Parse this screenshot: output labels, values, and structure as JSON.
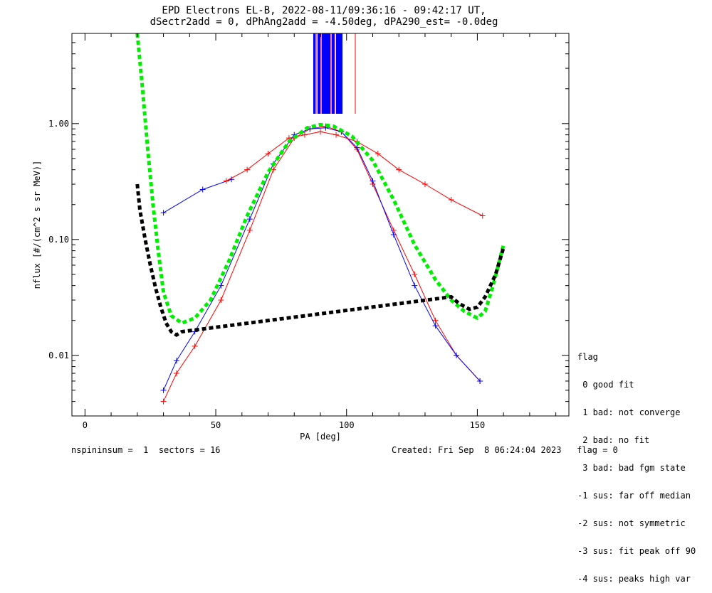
{
  "chart_data": {
    "type": "line",
    "title": "EPD Electrons EL-B, 2022-08-11/09:36:16 - 09:42:17 UT,",
    "subtitle": "dSectr2add = 0, dPhAng2add = -4.50deg, dPA290_est=  -0.0deg",
    "xlabel": "PA [deg]",
    "ylabel": "nflux [#/(cm^2 s sr MeV)]",
    "xlim": [
      -5,
      185
    ],
    "ylim": [
      0.003,
      6.0
    ],
    "yscale": "log",
    "xticks": [
      "0",
      "50",
      "100",
      "150"
    ],
    "xtick_values": [
      0,
      50,
      100,
      150
    ],
    "yticks": [
      "0.01",
      "0.10",
      "1.00"
    ],
    "ytick_values": [
      0.01,
      0.1,
      1.0
    ],
    "series": [
      {
        "color": "#ff0000",
        "x": [
          30,
          35,
          42,
          52,
          63,
          72,
          80,
          86,
          92,
          98,
          104,
          110,
          118,
          126,
          134,
          142,
          151
        ],
        "y": [
          0.004,
          0.007,
          0.012,
          0.03,
          0.12,
          0.4,
          0.75,
          0.9,
          0.95,
          0.85,
          0.6,
          0.3,
          0.12,
          0.05,
          0.02,
          0.01,
          0.006
        ]
      },
      {
        "color": "#0000ff",
        "x": [
          30,
          35,
          42,
          52,
          63,
          72,
          80,
          86,
          92,
          98,
          104,
          110,
          118,
          126,
          134,
          142,
          151
        ],
        "y": [
          0.005,
          0.009,
          0.016,
          0.04,
          0.15,
          0.45,
          0.8,
          0.9,
          0.92,
          0.85,
          0.62,
          0.32,
          0.11,
          0.04,
          0.018,
          0.01,
          0.006
        ]
      },
      {
        "color": "#0000ff",
        "x": [
          30,
          45,
          56
        ],
        "y": [
          0.17,
          0.27,
          0.33
        ]
      },
      {
        "color": "#ff0000",
        "x": [
          54,
          62,
          70,
          78,
          84,
          90,
          96,
          104,
          112,
          120,
          130,
          140,
          152
        ],
        "y": [
          0.32,
          0.4,
          0.55,
          0.75,
          0.8,
          0.85,
          0.8,
          0.7,
          0.55,
          0.4,
          0.3,
          0.22,
          0.16
        ]
      }
    ],
    "fits": [
      {
        "color": "#00ee00",
        "x": [
          20,
          22,
          24,
          26,
          28,
          30,
          33,
          37,
          42,
          48,
          55,
          62,
          70,
          78,
          85,
          90,
          95,
          102,
          110,
          118,
          126,
          134,
          140,
          145,
          150,
          153,
          156,
          160
        ],
        "y": [
          6,
          2.0,
          0.6,
          0.2,
          0.08,
          0.035,
          0.022,
          0.019,
          0.021,
          0.03,
          0.065,
          0.16,
          0.38,
          0.7,
          0.92,
          0.98,
          0.95,
          0.78,
          0.48,
          0.22,
          0.09,
          0.045,
          0.03,
          0.024,
          0.021,
          0.024,
          0.04,
          0.09
        ]
      },
      {
        "color": "#000000",
        "x": [
          20,
          21,
          23,
          25,
          27,
          29,
          31,
          33,
          35,
          37,
          140,
          143,
          147,
          150,
          153,
          157,
          160
        ],
        "y": [
          0.3,
          0.18,
          0.1,
          0.06,
          0.038,
          0.026,
          0.019,
          0.016,
          0.015,
          0.016,
          0.032,
          0.028,
          0.025,
          0.026,
          0.032,
          0.05,
          0.085
        ]
      }
    ],
    "legend": {
      "placement": "right-bottom",
      "title": "flag",
      "entries": [
        " 0 good fit",
        " 1 bad: not converge",
        " 2 bad: no fit",
        " 3 bad: bad fgm state",
        "-1 sus: far off median",
        "-2 sus: not symmetric",
        "-3 sus: fit peak off 90",
        "-4 sus: peaks high var"
      ]
    },
    "grid": false
  },
  "footer": {
    "left": "nspininsum =  1  sectors = 16",
    "right": "Created: Fri Sep  8 06:24:04 2023   flag = 0"
  }
}
